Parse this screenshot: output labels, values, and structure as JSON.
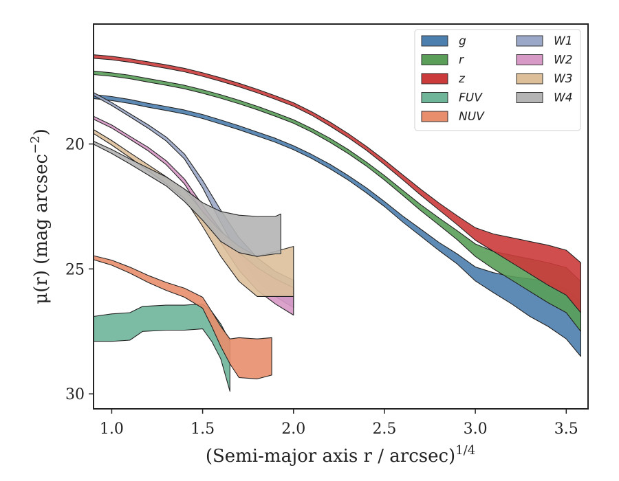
{
  "chart_data": {
    "type": "area",
    "title": "",
    "xlabel": "(Semi-major axis r / arcsec)",
    "xlabel_sup": "1/4",
    "ylabel": "μ(r) (mag arcsec",
    "ylabel_sup": "−2",
    "ylabel_tail": ")",
    "xlim": [
      0.9,
      3.62
    ],
    "ylim": [
      30.6,
      15.2
    ],
    "y_inverted": true,
    "x_ticks": [
      1.0,
      1.5,
      2.0,
      2.5,
      3.0,
      3.5
    ],
    "x_tick_labels": [
      "1.0",
      "1.5",
      "2.0",
      "2.5",
      "3.0",
      "3.5"
    ],
    "y_ticks": [
      20,
      25,
      30
    ],
    "y_tick_labels": [
      "20",
      "25",
      "30"
    ],
    "grid": false,
    "legend_position": "top-right",
    "legend_columns": 2,
    "series": [
      {
        "name": "g",
        "color": "#4c7eae",
        "points": [
          [
            0.9,
            18.1
          ],
          [
            1.0,
            18.18
          ],
          [
            1.1,
            18.3
          ],
          [
            1.2,
            18.45
          ],
          [
            1.3,
            18.58
          ],
          [
            1.4,
            18.72
          ],
          [
            1.5,
            18.9
          ],
          [
            1.6,
            19.12
          ],
          [
            1.7,
            19.35
          ],
          [
            1.8,
            19.6
          ],
          [
            1.9,
            19.85
          ],
          [
            2.0,
            20.15
          ],
          [
            2.1,
            20.5
          ],
          [
            2.2,
            20.9
          ],
          [
            2.3,
            21.35
          ],
          [
            2.4,
            21.85
          ],
          [
            2.5,
            22.4
          ],
          [
            2.6,
            23.0
          ],
          [
            2.7,
            23.55
          ],
          [
            2.8,
            24.1
          ],
          [
            2.9,
            24.6
          ],
          [
            3.0,
            25.2
          ],
          [
            3.1,
            25.55
          ],
          [
            3.2,
            25.85
          ],
          [
            3.3,
            26.15
          ],
          [
            3.4,
            26.4
          ],
          [
            3.5,
            26.8
          ],
          [
            3.58,
            27.4
          ]
        ],
        "half_width": [
          0.08,
          0.08,
          0.08,
          0.08,
          0.08,
          0.08,
          0.08,
          0.08,
          0.08,
          0.08,
          0.08,
          0.08,
          0.08,
          0.09,
          0.09,
          0.1,
          0.1,
          0.12,
          0.14,
          0.16,
          0.2,
          0.28,
          0.4,
          0.55,
          0.75,
          0.9,
          1.0,
          1.1
        ]
      },
      {
        "name": "r",
        "color": "#5a9e5a",
        "points": [
          [
            0.9,
            17.15
          ],
          [
            1.0,
            17.22
          ],
          [
            1.1,
            17.32
          ],
          [
            1.2,
            17.45
          ],
          [
            1.3,
            17.58
          ],
          [
            1.4,
            17.72
          ],
          [
            1.5,
            17.9
          ],
          [
            1.6,
            18.1
          ],
          [
            1.7,
            18.32
          ],
          [
            1.8,
            18.56
          ],
          [
            1.9,
            18.82
          ],
          [
            2.0,
            19.1
          ],
          [
            2.1,
            19.45
          ],
          [
            2.2,
            19.85
          ],
          [
            2.3,
            20.3
          ],
          [
            2.4,
            20.8
          ],
          [
            2.5,
            21.35
          ],
          [
            2.6,
            21.95
          ],
          [
            2.7,
            22.55
          ],
          [
            2.8,
            23.1
          ],
          [
            2.9,
            23.65
          ],
          [
            3.0,
            24.25
          ],
          [
            3.1,
            24.65
          ],
          [
            3.2,
            24.95
          ],
          [
            3.3,
            25.25
          ],
          [
            3.4,
            25.55
          ],
          [
            3.5,
            25.85
          ],
          [
            3.58,
            26.5
          ]
        ],
        "half_width": [
          0.07,
          0.07,
          0.07,
          0.07,
          0.07,
          0.07,
          0.07,
          0.07,
          0.07,
          0.07,
          0.07,
          0.07,
          0.07,
          0.08,
          0.08,
          0.08,
          0.09,
          0.1,
          0.12,
          0.14,
          0.18,
          0.25,
          0.35,
          0.5,
          0.65,
          0.8,
          0.9,
          1.0
        ]
      },
      {
        "name": "z",
        "color": "#cc3b3b",
        "points": [
          [
            0.9,
            16.5
          ],
          [
            1.0,
            16.56
          ],
          [
            1.1,
            16.66
          ],
          [
            1.2,
            16.78
          ],
          [
            1.3,
            16.9
          ],
          [
            1.4,
            17.04
          ],
          [
            1.5,
            17.22
          ],
          [
            1.6,
            17.42
          ],
          [
            1.7,
            17.64
          ],
          [
            1.8,
            17.88
          ],
          [
            1.9,
            18.14
          ],
          [
            2.0,
            18.42
          ],
          [
            2.1,
            18.78
          ],
          [
            2.2,
            19.2
          ],
          [
            2.3,
            19.66
          ],
          [
            2.4,
            20.17
          ],
          [
            2.5,
            20.73
          ],
          [
            2.6,
            21.33
          ],
          [
            2.7,
            21.93
          ],
          [
            2.8,
            22.5
          ],
          [
            2.9,
            23.05
          ],
          [
            3.0,
            23.6
          ],
          [
            3.1,
            23.95
          ],
          [
            3.2,
            24.25
          ],
          [
            3.3,
            24.55
          ],
          [
            3.4,
            24.85
          ],
          [
            3.5,
            25.15
          ],
          [
            3.58,
            25.75
          ]
        ],
        "half_width": [
          0.07,
          0.07,
          0.07,
          0.07,
          0.07,
          0.07,
          0.07,
          0.07,
          0.07,
          0.07,
          0.07,
          0.07,
          0.07,
          0.08,
          0.08,
          0.08,
          0.09,
          0.1,
          0.12,
          0.14,
          0.18,
          0.25,
          0.35,
          0.5,
          0.65,
          0.8,
          0.9,
          1.0
        ]
      },
      {
        "name": "FUV",
        "color": "#6fb59a",
        "points": [
          [
            0.9,
            27.4
          ],
          [
            1.0,
            27.35
          ],
          [
            1.1,
            27.3
          ],
          [
            1.17,
            27.0
          ],
          [
            1.3,
            26.95
          ],
          [
            1.4,
            26.95
          ],
          [
            1.5,
            26.9
          ],
          [
            1.55,
            27.3
          ],
          [
            1.6,
            27.9
          ],
          [
            1.65,
            28.9
          ]
        ],
        "half_width": [
          0.5,
          0.55,
          0.55,
          0.5,
          0.5,
          0.5,
          0.5,
          0.6,
          0.7,
          1.0
        ]
      },
      {
        "name": "NUV",
        "color": "#e88e6c",
        "points": [
          [
            0.9,
            24.55
          ],
          [
            1.0,
            24.75
          ],
          [
            1.1,
            25.05
          ],
          [
            1.2,
            25.4
          ],
          [
            1.3,
            25.7
          ],
          [
            1.4,
            25.95
          ],
          [
            1.5,
            26.35
          ],
          [
            1.55,
            27.0
          ],
          [
            1.6,
            27.7
          ],
          [
            1.65,
            28.3
          ],
          [
            1.7,
            28.55
          ],
          [
            1.8,
            28.6
          ],
          [
            1.88,
            28.5
          ]
        ],
        "half_width": [
          0.08,
          0.1,
          0.12,
          0.14,
          0.16,
          0.18,
          0.22,
          0.3,
          0.4,
          0.5,
          0.8,
          0.8,
          0.75
        ]
      },
      {
        "name": "W1",
        "color": "#9ba8c8",
        "points": [
          [
            0.9,
            18.0
          ],
          [
            1.0,
            18.4
          ],
          [
            1.1,
            18.85
          ],
          [
            1.2,
            19.3
          ],
          [
            1.3,
            19.8
          ],
          [
            1.4,
            20.5
          ],
          [
            1.5,
            21.6
          ],
          [
            1.6,
            22.9
          ],
          [
            1.7,
            24.1
          ],
          [
            1.8,
            25.0
          ],
          [
            1.9,
            25.6
          ],
          [
            2.0,
            26.0
          ]
        ],
        "half_width": [
          0.06,
          0.06,
          0.06,
          0.07,
          0.08,
          0.1,
          0.15,
          0.25,
          0.35,
          0.45,
          0.5,
          0.55
        ]
      },
      {
        "name": "W2",
        "color": "#d799c6",
        "points": [
          [
            0.9,
            18.95
          ],
          [
            1.0,
            19.3
          ],
          [
            1.1,
            19.75
          ],
          [
            1.2,
            20.2
          ],
          [
            1.3,
            20.75
          ],
          [
            1.4,
            21.5
          ],
          [
            1.5,
            22.6
          ],
          [
            1.6,
            23.7
          ],
          [
            1.7,
            24.7
          ],
          [
            1.8,
            25.4
          ],
          [
            1.9,
            25.9
          ],
          [
            2.0,
            26.3
          ]
        ],
        "half_width": [
          0.06,
          0.06,
          0.06,
          0.07,
          0.08,
          0.1,
          0.15,
          0.25,
          0.35,
          0.45,
          0.5,
          0.55
        ]
      },
      {
        "name": "W3",
        "color": "#ddc09a",
        "points": [
          [
            0.9,
            19.5
          ],
          [
            1.0,
            19.95
          ],
          [
            1.1,
            20.45
          ],
          [
            1.2,
            20.95
          ],
          [
            1.3,
            21.45
          ],
          [
            1.4,
            22.0
          ],
          [
            1.5,
            23.0
          ],
          [
            1.6,
            24.0
          ],
          [
            1.7,
            24.8
          ],
          [
            1.8,
            25.3
          ],
          [
            1.9,
            25.2
          ],
          [
            2.0,
            25.1
          ]
        ],
        "half_width": [
          0.08,
          0.09,
          0.1,
          0.12,
          0.14,
          0.18,
          0.3,
          0.5,
          0.7,
          0.8,
          0.9,
          1.0
        ]
      },
      {
        "name": "W4",
        "color": "#b4b4b4",
        "points": [
          [
            0.9,
            19.95
          ],
          [
            1.0,
            20.3
          ],
          [
            1.1,
            20.7
          ],
          [
            1.2,
            21.1
          ],
          [
            1.3,
            21.5
          ],
          [
            1.4,
            22.05
          ],
          [
            1.5,
            22.7
          ],
          [
            1.6,
            23.3
          ],
          [
            1.7,
            23.6
          ],
          [
            1.8,
            23.7
          ],
          [
            1.9,
            23.65
          ],
          [
            1.93,
            23.6
          ]
        ],
        "half_width": [
          0.06,
          0.08,
          0.1,
          0.14,
          0.18,
          0.25,
          0.35,
          0.6,
          0.75,
          0.8,
          0.75,
          0.8
        ]
      }
    ]
  }
}
